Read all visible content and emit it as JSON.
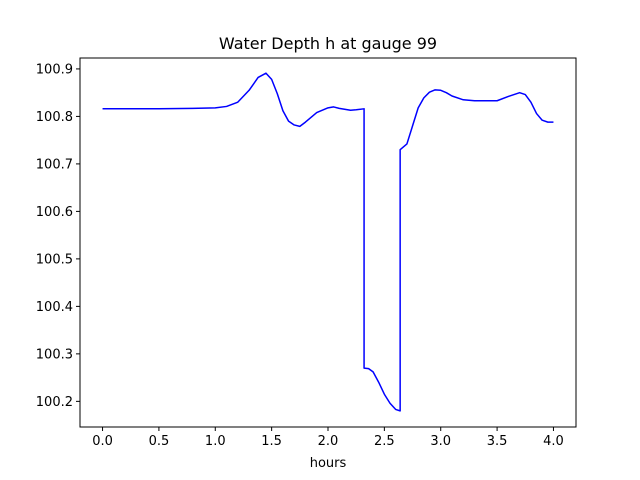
{
  "chart_data": {
    "type": "line",
    "title": "Water Depth h at gauge 99",
    "xlabel": "hours",
    "ylabel": "",
    "xlim": [
      -0.2,
      4.2
    ],
    "ylim": [
      100.146,
      100.923
    ],
    "xticks": [
      0.0,
      0.5,
      1.0,
      1.5,
      2.0,
      2.5,
      3.0,
      3.5,
      4.0
    ],
    "xtick_labels": [
      "0.0",
      "0.5",
      "1.0",
      "1.5",
      "2.0",
      "2.5",
      "3.0",
      "3.5",
      "4.0"
    ],
    "yticks": [
      100.2,
      100.3,
      100.4,
      100.5,
      100.6,
      100.7,
      100.8,
      100.9
    ],
    "ytick_labels": [
      "100.2",
      "100.3",
      "100.4",
      "100.5",
      "100.6",
      "100.7",
      "100.8",
      "100.9"
    ],
    "grid": false,
    "series": [
      {
        "color": "#0000ff",
        "x": [
          0.0,
          0.5,
          0.8,
          1.0,
          1.1,
          1.2,
          1.3,
          1.38,
          1.45,
          1.5,
          1.55,
          1.6,
          1.65,
          1.7,
          1.75,
          1.8,
          1.9,
          2.0,
          2.05,
          2.1,
          2.2,
          2.25,
          2.32,
          2.32,
          2.36,
          2.4,
          2.45,
          2.5,
          2.55,
          2.6,
          2.64,
          2.64,
          2.7,
          2.75,
          2.8,
          2.85,
          2.9,
          2.95,
          3.0,
          3.05,
          3.1,
          3.2,
          3.3,
          3.4,
          3.5,
          3.6,
          3.7,
          3.75,
          3.8,
          3.85,
          3.9,
          3.95,
          4.0
        ],
        "y": [
          100.816,
          100.816,
          100.817,
          100.818,
          100.821,
          100.83,
          100.855,
          100.882,
          100.891,
          100.878,
          100.848,
          100.812,
          100.79,
          100.782,
          100.779,
          100.788,
          100.808,
          100.818,
          100.82,
          100.817,
          100.813,
          100.814,
          100.816,
          100.27,
          100.269,
          100.262,
          100.24,
          100.215,
          100.196,
          100.183,
          100.18,
          100.73,
          100.742,
          100.78,
          100.818,
          100.839,
          100.851,
          100.856,
          100.855,
          100.85,
          100.843,
          100.835,
          100.833,
          100.833,
          100.833,
          100.842,
          100.85,
          100.846,
          100.83,
          100.806,
          100.792,
          100.788,
          100.788
        ]
      }
    ]
  }
}
